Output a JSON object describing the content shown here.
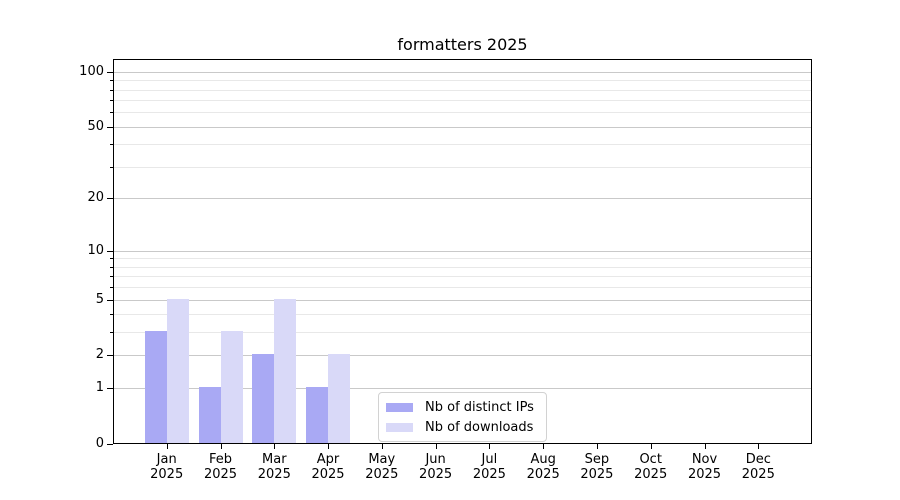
{
  "chart_data": {
    "type": "bar",
    "title": "formatters 2025",
    "year": "2025",
    "months": [
      "Jan",
      "Feb",
      "Mar",
      "Apr",
      "May",
      "Jun",
      "Jul",
      "Aug",
      "Sep",
      "Oct",
      "Nov",
      "Dec"
    ],
    "categories": [
      "Jan 2025",
      "Feb 2025",
      "Mar 2025",
      "Apr 2025",
      "May 2025",
      "Jun 2025",
      "Jul 2025",
      "Aug 2025",
      "Sep 2025",
      "Oct 2025",
      "Nov 2025",
      "Dec 2025"
    ],
    "series": [
      {
        "name": "Nb of distinct IPs",
        "key": "distinct-ips",
        "color": "#a9a9f4",
        "values": [
          3,
          1,
          2,
          1,
          0,
          0,
          0,
          0,
          0,
          0,
          0,
          0
        ]
      },
      {
        "name": "Nb of downloads",
        "key": "downloads",
        "color": "#d9d9f8",
        "values": [
          5,
          3,
          5,
          2,
          0,
          0,
          0,
          0,
          0,
          0,
          0,
          0
        ]
      }
    ],
    "xlabel": "",
    "ylabel": "",
    "yscale": "log1p (y position proportional to log10(1+value))",
    "ylim": [
      0,
      117
    ],
    "y_major_ticks": [
      0,
      1,
      2,
      5,
      10,
      20,
      50,
      100
    ],
    "y_minor_ticks": [
      3,
      4,
      6,
      7,
      8,
      9,
      30,
      40,
      60,
      70,
      80,
      90
    ],
    "grid": true,
    "legend_position": "lower center",
    "colors": {
      "background": "#ffffff",
      "grid_major": "#c9c9c9",
      "grid_minor": "#e8e8e8",
      "spine": "#000000",
      "text": "#000000",
      "legend_border": "#d2d2d2"
    }
  }
}
